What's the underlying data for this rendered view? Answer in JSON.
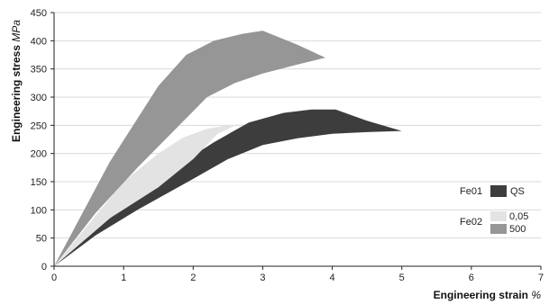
{
  "chart_data": {
    "type": "area",
    "xlabel": "Engineering strain",
    "xlabel_unit": "%",
    "ylabel": "Engineering stress",
    "ylabel_unit": "MPa",
    "xlim": [
      0,
      7
    ],
    "ylim": [
      0,
      450
    ],
    "x_ticks": [
      0,
      1,
      2,
      3,
      4,
      5,
      6,
      7
    ],
    "y_ticks": [
      0,
      50,
      100,
      150,
      200,
      250,
      300,
      350,
      400,
      450
    ],
    "grid": "horizontal",
    "legend_position": "bottom-right",
    "series": [
      {
        "group": "Fe01",
        "name": "QS",
        "color": "#3d3d3d",
        "upper": [
          [
            0,
            0
          ],
          [
            0.8,
            85
          ],
          [
            1.6,
            165
          ],
          [
            2.3,
            220
          ],
          [
            2.8,
            255
          ],
          [
            3.3,
            272
          ],
          [
            3.7,
            278
          ],
          [
            4.05,
            278
          ],
          [
            4.5,
            258
          ],
          [
            5.0,
            240
          ]
        ],
        "lower": [
          [
            5.0,
            240
          ],
          [
            4.5,
            238
          ],
          [
            4.0,
            235
          ],
          [
            3.5,
            227
          ],
          [
            3.0,
            215
          ],
          [
            2.5,
            190
          ],
          [
            2.0,
            155
          ],
          [
            1.2,
            100
          ],
          [
            0.6,
            55
          ],
          [
            0,
            0
          ]
        ]
      },
      {
        "group": "Fe02",
        "name": "0,05",
        "color": "#e3e3e3",
        "upper": [
          [
            0,
            0
          ],
          [
            1.0,
            150
          ],
          [
            1.5,
            200
          ],
          [
            1.85,
            228
          ],
          [
            2.2,
            244
          ],
          [
            2.5,
            250
          ],
          [
            2.65,
            252
          ]
        ],
        "lower": [
          [
            2.65,
            252
          ],
          [
            2.35,
            235
          ],
          [
            2.0,
            190
          ],
          [
            1.5,
            140
          ],
          [
            0.8,
            85
          ],
          [
            0,
            0
          ]
        ]
      },
      {
        "group": "Fe02",
        "name": "500",
        "color": "#969696",
        "upper": [
          [
            0,
            0
          ],
          [
            0.8,
            185
          ],
          [
            1.5,
            320
          ],
          [
            1.9,
            375
          ],
          [
            2.3,
            400
          ],
          [
            2.7,
            412
          ],
          [
            3.0,
            418
          ]
        ],
        "lower": [
          [
            3.0,
            418
          ],
          [
            3.5,
            393
          ],
          [
            3.9,
            370
          ],
          [
            3.5,
            358
          ],
          [
            3.0,
            342
          ],
          [
            2.6,
            325
          ],
          [
            2.2,
            300
          ],
          [
            1.8,
            250
          ],
          [
            1.2,
            175
          ],
          [
            0.6,
            95
          ],
          [
            0,
            0
          ]
        ]
      }
    ],
    "legend": {
      "groups": [
        {
          "label": "Fe01",
          "entries": [
            "QS"
          ]
        },
        {
          "label": "Fe02",
          "entries": [
            "0,05",
            "500"
          ]
        }
      ]
    }
  }
}
